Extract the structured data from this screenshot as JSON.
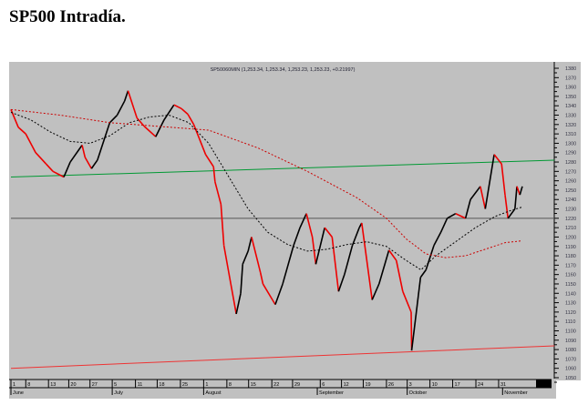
{
  "page_title": "SP500 Intradía.",
  "chart_data": {
    "type": "line",
    "title": "SP50060MIN (1,253.34, 1,253.34, 1,253.23, 1,253.23, +0.21997)",
    "ylim": [
      1050,
      1380
    ],
    "yticks": [
      1380,
      1370,
      1360,
      1350,
      1340,
      1330,
      1320,
      1310,
      1300,
      1290,
      1280,
      1270,
      1260,
      1250,
      1240,
      1230,
      1220,
      1210,
      1200,
      1190,
      1180,
      1170,
      1160,
      1150,
      1140,
      1130,
      1120,
      1110,
      1100,
      1090,
      1080,
      1070,
      1060,
      1050
    ],
    "xlim": [
      0,
      110
    ],
    "xticks": [
      {
        "d": 0,
        "label": "1"
      },
      {
        "d": 3,
        "label": "8"
      },
      {
        "d": 7.6,
        "label": "13"
      },
      {
        "d": 11.7,
        "label": "20"
      },
      {
        "d": 16,
        "label": "27"
      },
      {
        "d": 20.5,
        "label": "5"
      },
      {
        "d": 25.2,
        "label": "11"
      },
      {
        "d": 29.6,
        "label": "18"
      },
      {
        "d": 34.3,
        "label": "25"
      },
      {
        "d": 39,
        "label": "1"
      },
      {
        "d": 43.7,
        "label": "8"
      },
      {
        "d": 48.1,
        "label": "15"
      },
      {
        "d": 52.8,
        "label": "22"
      },
      {
        "d": 57,
        "label": "29"
      },
      {
        "d": 62.6,
        "label": "6"
      },
      {
        "d": 66.9,
        "label": "12"
      },
      {
        "d": 71.3,
        "label": "19"
      },
      {
        "d": 76,
        "label": "26"
      },
      {
        "d": 80.2,
        "label": "3"
      },
      {
        "d": 84.8,
        "label": "10"
      },
      {
        "d": 89.4,
        "label": "17"
      },
      {
        "d": 94.1,
        "label": "24"
      },
      {
        "d": 98.7,
        "label": "31"
      }
    ],
    "months": [
      {
        "d": 0,
        "label": "June"
      },
      {
        "d": 20.5,
        "label": "July"
      },
      {
        "d": 39,
        "label": "August"
      },
      {
        "d": 62,
        "label": "September"
      },
      {
        "d": 80.2,
        "label": "October"
      },
      {
        "d": 99.5,
        "label": "November"
      }
    ],
    "series": [
      {
        "name": "SP500 60min",
        "color": "#000",
        "points": [
          [
            0,
            1336
          ],
          [
            1.5,
            1317
          ],
          [
            3,
            1310
          ],
          [
            5,
            1290
          ],
          [
            7.1,
            1278
          ],
          [
            8.5,
            1270
          ],
          [
            10.7,
            1264
          ],
          [
            12,
            1280
          ],
          [
            14.4,
            1298
          ],
          [
            15,
            1285
          ],
          [
            16.3,
            1273
          ],
          [
            17.5,
            1282
          ],
          [
            20,
            1322
          ],
          [
            21.5,
            1330
          ],
          [
            23,
            1345
          ],
          [
            23.7,
            1356
          ],
          [
            25.5,
            1327
          ],
          [
            27,
            1318
          ],
          [
            29.3,
            1307
          ],
          [
            31,
            1325
          ],
          [
            33,
            1341
          ],
          [
            34.5,
            1337
          ],
          [
            35.8,
            1331
          ],
          [
            37,
            1320
          ],
          [
            39.4,
            1288
          ],
          [
            41,
            1275
          ],
          [
            41.3,
            1259
          ],
          [
            42.5,
            1235
          ],
          [
            43.1,
            1191
          ],
          [
            44.5,
            1150
          ],
          [
            45.6,
            1118
          ],
          [
            46.5,
            1140
          ],
          [
            46.9,
            1171
          ],
          [
            48,
            1185
          ],
          [
            48.7,
            1200
          ],
          [
            50.5,
            1162
          ],
          [
            51,
            1150
          ],
          [
            53.5,
            1128
          ],
          [
            55,
            1150
          ],
          [
            57.2,
            1191
          ],
          [
            58.5,
            1210
          ],
          [
            59.8,
            1225
          ],
          [
            61,
            1200
          ],
          [
            61.7,
            1171
          ],
          [
            63.5,
            1210
          ],
          [
            65,
            1200
          ],
          [
            66.3,
            1142
          ],
          [
            67.5,
            1160
          ],
          [
            69.1,
            1191
          ],
          [
            70.5,
            1210
          ],
          [
            71,
            1215
          ],
          [
            73.1,
            1133
          ],
          [
            74.5,
            1150
          ],
          [
            76.5,
            1186
          ],
          [
            78,
            1175
          ],
          [
            79.3,
            1142
          ],
          [
            81,
            1120
          ],
          [
            81.1,
            1079
          ],
          [
            82.9,
            1157
          ],
          [
            84,
            1165
          ],
          [
            85.6,
            1191
          ],
          [
            87,
            1205
          ],
          [
            88.3,
            1220
          ],
          [
            90,
            1225
          ],
          [
            92,
            1220
          ],
          [
            93,
            1240
          ],
          [
            95,
            1254
          ],
          [
            96,
            1230
          ],
          [
            97.8,
            1288
          ],
          [
            99.3,
            1278
          ],
          [
            100,
            1245
          ],
          [
            100.6,
            1220
          ],
          [
            102,
            1230
          ],
          [
            102.4,
            1254
          ],
          [
            103,
            1245
          ],
          [
            103.5,
            1254
          ]
        ]
      },
      {
        "name": "short moving average",
        "color": "#000",
        "dash": true,
        "points": [
          [
            0,
            1333
          ],
          [
            4,
            1325
          ],
          [
            8,
            1312
          ],
          [
            12,
            1302
          ],
          [
            16,
            1300
          ],
          [
            20,
            1308
          ],
          [
            24,
            1322
          ],
          [
            28,
            1328
          ],
          [
            32,
            1330
          ],
          [
            36,
            1322
          ],
          [
            40,
            1300
          ],
          [
            44,
            1265
          ],
          [
            48,
            1230
          ],
          [
            52,
            1205
          ],
          [
            56,
            1192
          ],
          [
            60,
            1185
          ],
          [
            64,
            1187
          ],
          [
            68,
            1192
          ],
          [
            72,
            1195
          ],
          [
            76,
            1190
          ],
          [
            80,
            1175
          ],
          [
            83,
            1165
          ],
          [
            86,
            1180
          ],
          [
            90,
            1195
          ],
          [
            94,
            1210
          ],
          [
            98,
            1222
          ],
          [
            101,
            1228
          ],
          [
            103.5,
            1232
          ]
        ]
      },
      {
        "name": "long moving average",
        "color": "#c00",
        "dash": true,
        "points": [
          [
            0,
            1336
          ],
          [
            10,
            1330
          ],
          [
            20,
            1322
          ],
          [
            30,
            1318
          ],
          [
            40,
            1314
          ],
          [
            50,
            1295
          ],
          [
            60,
            1270
          ],
          [
            70,
            1242
          ],
          [
            76,
            1220
          ],
          [
            80,
            1198
          ],
          [
            84,
            1182
          ],
          [
            88,
            1178
          ],
          [
            92,
            1180
          ],
          [
            96,
            1187
          ],
          [
            100,
            1194
          ],
          [
            103.5,
            1196
          ]
        ]
      }
    ],
    "reference_lines": [
      {
        "name": "green trendline",
        "color": "#009933",
        "from": [
          0,
          1264
        ],
        "to": [
          110,
          1282
        ]
      },
      {
        "name": "horizontal level 1220",
        "color": "#555",
        "from": [
          0,
          1220
        ],
        "to": [
          110,
          1220
        ]
      },
      {
        "name": "red support trendline",
        "color": "#e33",
        "from": [
          0,
          1060
        ],
        "to": [
          110,
          1084
        ]
      }
    ]
  }
}
